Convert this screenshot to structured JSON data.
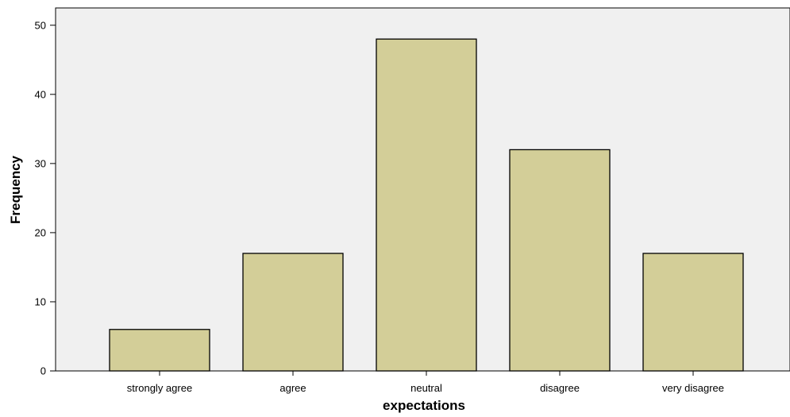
{
  "chart_data": {
    "type": "bar",
    "categories": [
      "strongly agree",
      "agree",
      "neutral",
      "disagree",
      "very disagree"
    ],
    "values": [
      6,
      17,
      48,
      32,
      17
    ],
    "title": "",
    "xlabel": "expectations",
    "ylabel": "Frequency",
    "ylim": [
      0,
      52.5
    ],
    "yticks": [
      0,
      10,
      20,
      30,
      40,
      50
    ],
    "grid": false,
    "colors": {
      "plot_background": "#f0f0f0",
      "bar_fill": "#d3ce98",
      "bar_stroke": "#000000"
    }
  }
}
